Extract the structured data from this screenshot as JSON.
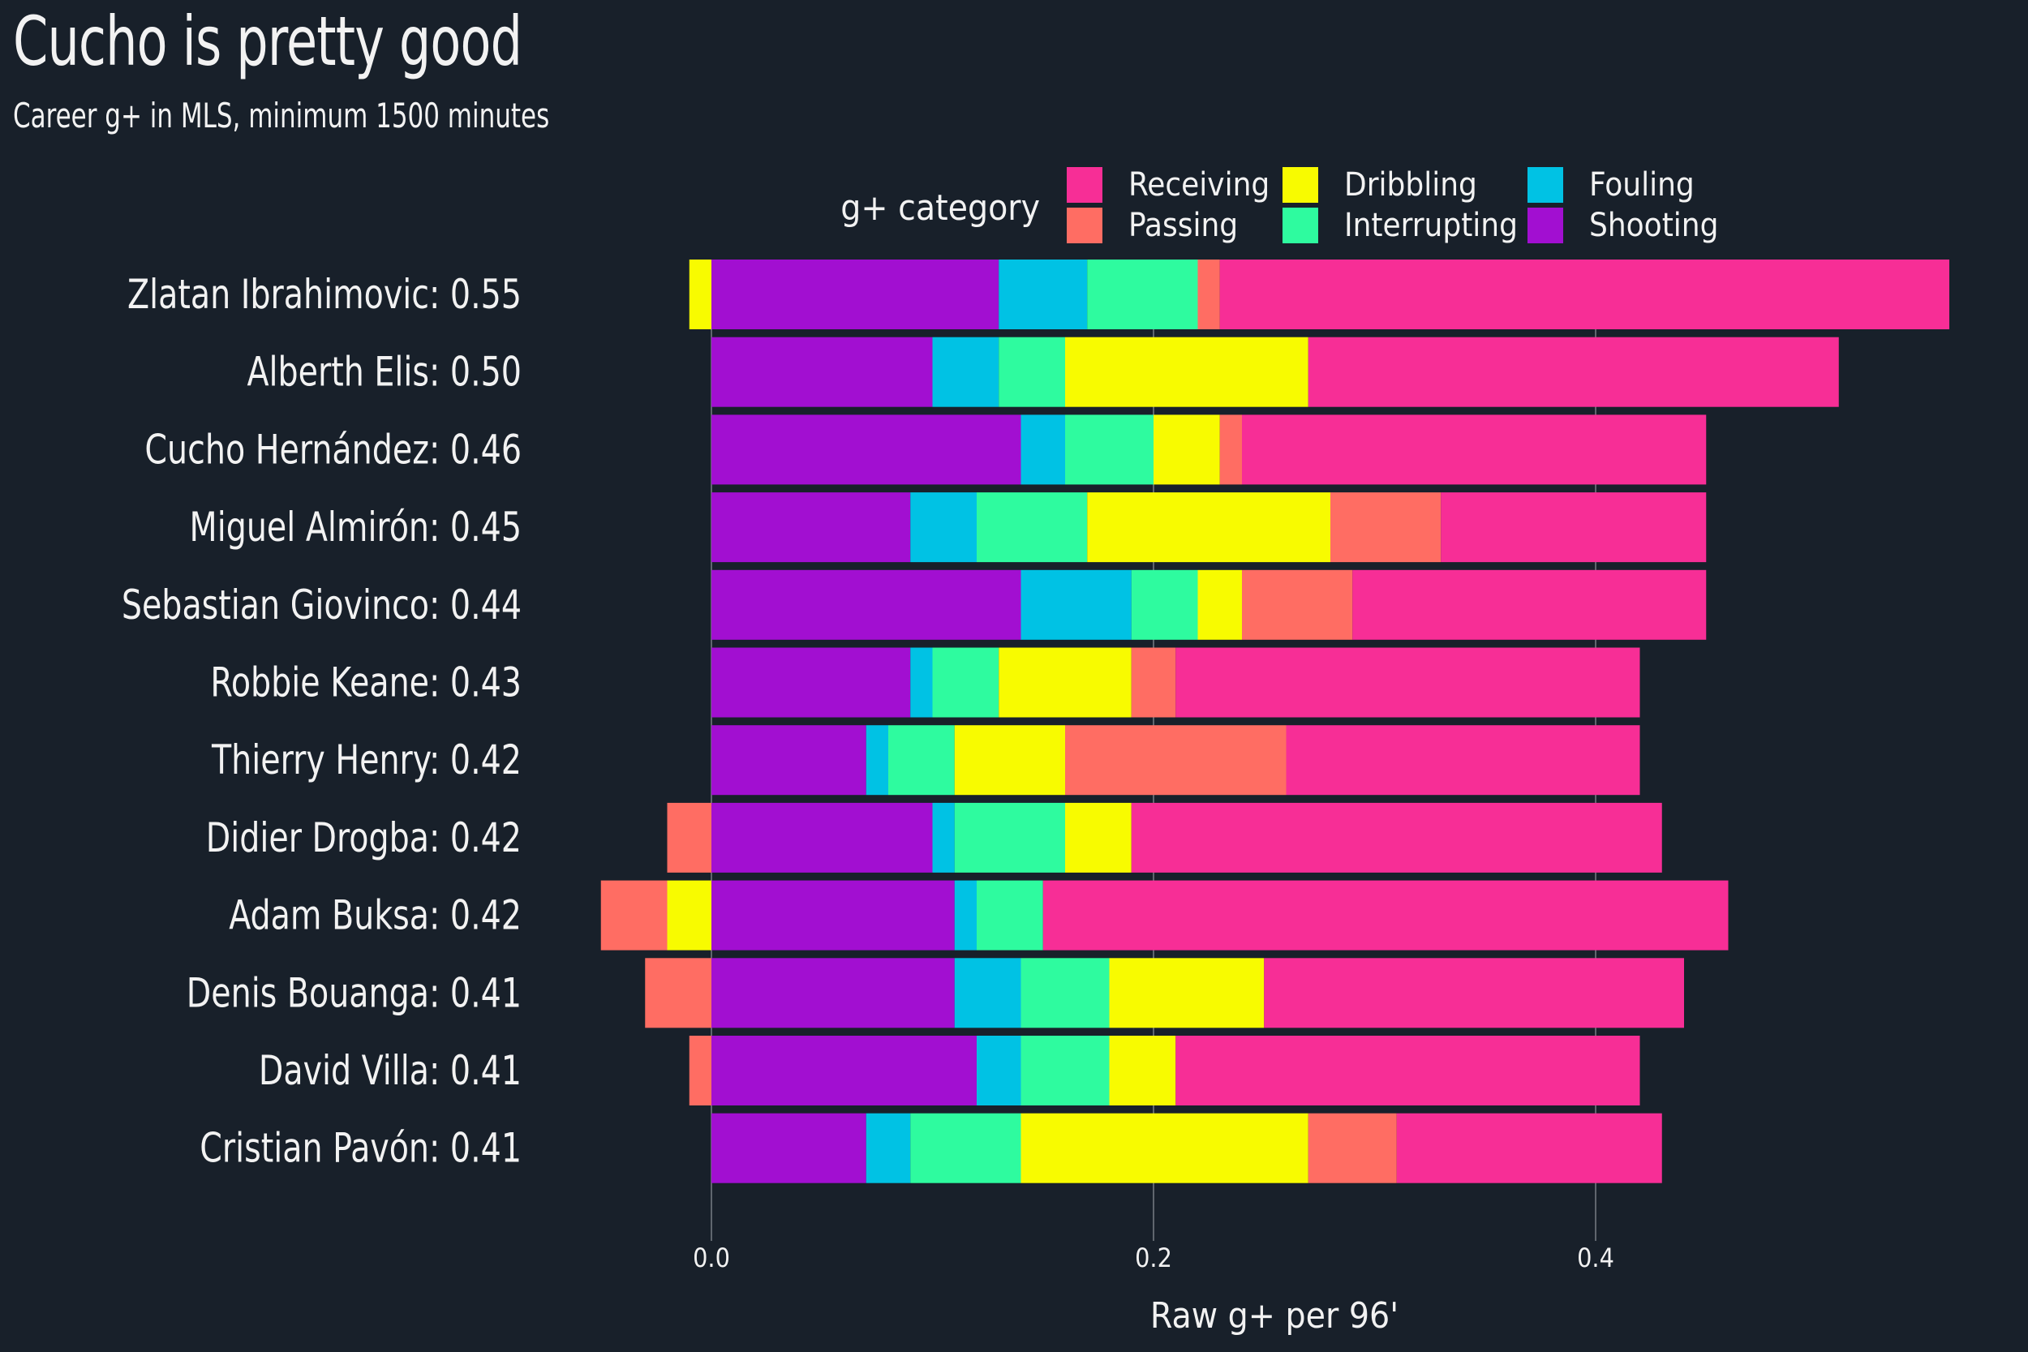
{
  "title": "Cucho is pretty good",
  "subtitle": "Career g+ in MLS, minimum 1500 minutes",
  "chart_data": {
    "type": "bar",
    "orientation": "horizontal",
    "stacked": true,
    "xlabel": "Raw g+ per 96'",
    "xlim": [
      -0.05,
      0.56
    ],
    "xticks": [
      "0.0",
      "0.2",
      "0.4"
    ],
    "legend": {
      "title": "g+ category",
      "placement": "top",
      "entries": [
        "Receiving",
        "Passing",
        "Dribbling",
        "Interrupting",
        "Fouling",
        "Shooting"
      ]
    },
    "colors": {
      "Receiving": "#f72e96",
      "Passing": "#ff6d63",
      "Dribbling": "#f8fb00",
      "Interrupting": "#2efb9f",
      "Fouling": "#00c2e4",
      "Shooting": "#a20fd1"
    },
    "categories": [
      "Zlatan Ibrahimovic: 0.55",
      "Alberth Elis: 0.50",
      "Cucho Hernández: 0.46",
      "Miguel Almirón: 0.45",
      "Sebastian Giovinco: 0.44",
      "Robbie Keane: 0.43",
      "Thierry Henry: 0.42",
      "Didier Drogba: 0.42",
      "Adam Buksa: 0.42",
      "Denis Bouanga: 0.41",
      "David Villa: 0.41",
      "Cristian Pavón: 0.41"
    ],
    "series": [
      {
        "name": "Shooting",
        "values": [
          0.13,
          0.1,
          0.14,
          0.09,
          0.14,
          0.09,
          0.07,
          0.1,
          0.11,
          0.11,
          0.12,
          0.07
        ]
      },
      {
        "name": "Fouling",
        "values": [
          0.04,
          0.03,
          0.02,
          0.03,
          0.05,
          0.01,
          0.01,
          0.01,
          0.01,
          0.03,
          0.02,
          0.02
        ]
      },
      {
        "name": "Interrupting",
        "values": [
          0.05,
          0.03,
          0.04,
          0.05,
          0.03,
          0.03,
          0.03,
          0.05,
          0.03,
          0.04,
          0.04,
          0.05
        ]
      },
      {
        "name": "Dribbling",
        "values": [
          -0.01,
          0.11,
          0.03,
          0.11,
          0.02,
          0.06,
          0.05,
          0.03,
          -0.02,
          0.07,
          0.03,
          0.13
        ]
      },
      {
        "name": "Passing",
        "values": [
          0.01,
          0.0,
          0.01,
          0.05,
          0.05,
          0.02,
          0.1,
          -0.02,
          -0.03,
          -0.03,
          -0.01,
          0.04
        ]
      },
      {
        "name": "Receiving",
        "values": [
          0.33,
          0.24,
          0.21,
          0.12,
          0.16,
          0.21,
          0.16,
          0.24,
          0.31,
          0.19,
          0.21,
          0.12
        ]
      }
    ]
  }
}
